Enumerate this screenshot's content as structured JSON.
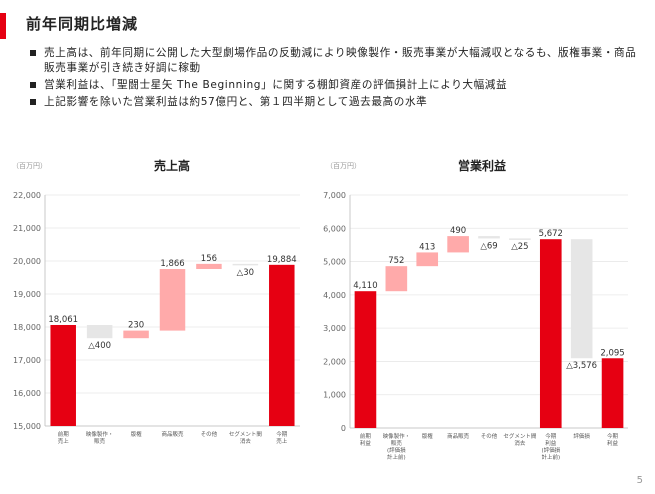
{
  "title": "前年同期比増減",
  "bullets": [
    "売上高は、前年同期に公開した大型劇場作品の反動減により映像製作・販売事業が大幅減収となるも、版権事業・商品販売事業が引き続き好調に稼動",
    "営業利益は、「聖闘士星矢 The Beginning」に関する棚卸資産の評価損計上により大幅減益",
    "上記影響を除いた営業利益は約57億円と、第１四半期として過去最高の水準"
  ],
  "page_number": "5",
  "colors": {
    "accent": "#e60012",
    "increase": "#ffaaaa",
    "decrease": "#e6e6e6",
    "axis_text": "#666666"
  },
  "chart_data": [
    {
      "type": "waterfall",
      "title": "売上高",
      "unit": "（百万円）",
      "ylim": [
        15000,
        22000
      ],
      "yticks": [
        "15,000",
        "16,000",
        "17,000",
        "18,000",
        "19,000",
        "20,000",
        "21,000",
        "22,000"
      ],
      "tick_step": 1000,
      "bars": [
        {
          "category": "前期\n売上",
          "kind": "total",
          "value": 18061,
          "label": "18,061"
        },
        {
          "category": "映像製作・\n販売",
          "kind": "decrease",
          "value": -400,
          "label": "△400"
        },
        {
          "category": "版権",
          "kind": "increase",
          "value": 230,
          "label": "230"
        },
        {
          "category": "商品販売",
          "kind": "increase",
          "value": 1866,
          "label": "1,866"
        },
        {
          "category": "その他",
          "kind": "increase",
          "value": 156,
          "label": "156"
        },
        {
          "category": "セグメント間\n消去",
          "kind": "decrease",
          "value": -30,
          "label": "△30"
        },
        {
          "category": "今期\n売上",
          "kind": "total",
          "value": 19884,
          "label": "19,884"
        }
      ]
    },
    {
      "type": "waterfall",
      "title": "営業利益",
      "unit": "（百万円）",
      "ylim": [
        0,
        7000
      ],
      "yticks": [
        "0",
        "1,000",
        "2,000",
        "3,000",
        "4,000",
        "5,000",
        "6,000",
        "7,000"
      ],
      "tick_step": 1000,
      "bars": [
        {
          "category": "前期\n利益",
          "kind": "total",
          "value": 4110,
          "label": "4,110"
        },
        {
          "category": "映像製作・\n販売\n(評価損\n計上前)",
          "kind": "increase",
          "value": 752,
          "label": "752"
        },
        {
          "category": "版権",
          "kind": "increase",
          "value": 413,
          "label": "413"
        },
        {
          "category": "商品販売",
          "kind": "increase",
          "value": 490,
          "label": "490"
        },
        {
          "category": "その他",
          "kind": "decrease",
          "value": -69,
          "label": "△69"
        },
        {
          "category": "セグメント間\n消去",
          "kind": "decrease",
          "value": -25,
          "label": "△25"
        },
        {
          "category": "今期\n利益\n(評価損\n計上前)",
          "kind": "total",
          "value": 5672,
          "label": "5,672"
        },
        {
          "category": "評価損",
          "kind": "decrease",
          "value": -3576,
          "label": "△3,576"
        },
        {
          "category": "今期\n利益",
          "kind": "total",
          "value": 2095,
          "label": "2,095"
        }
      ]
    }
  ]
}
